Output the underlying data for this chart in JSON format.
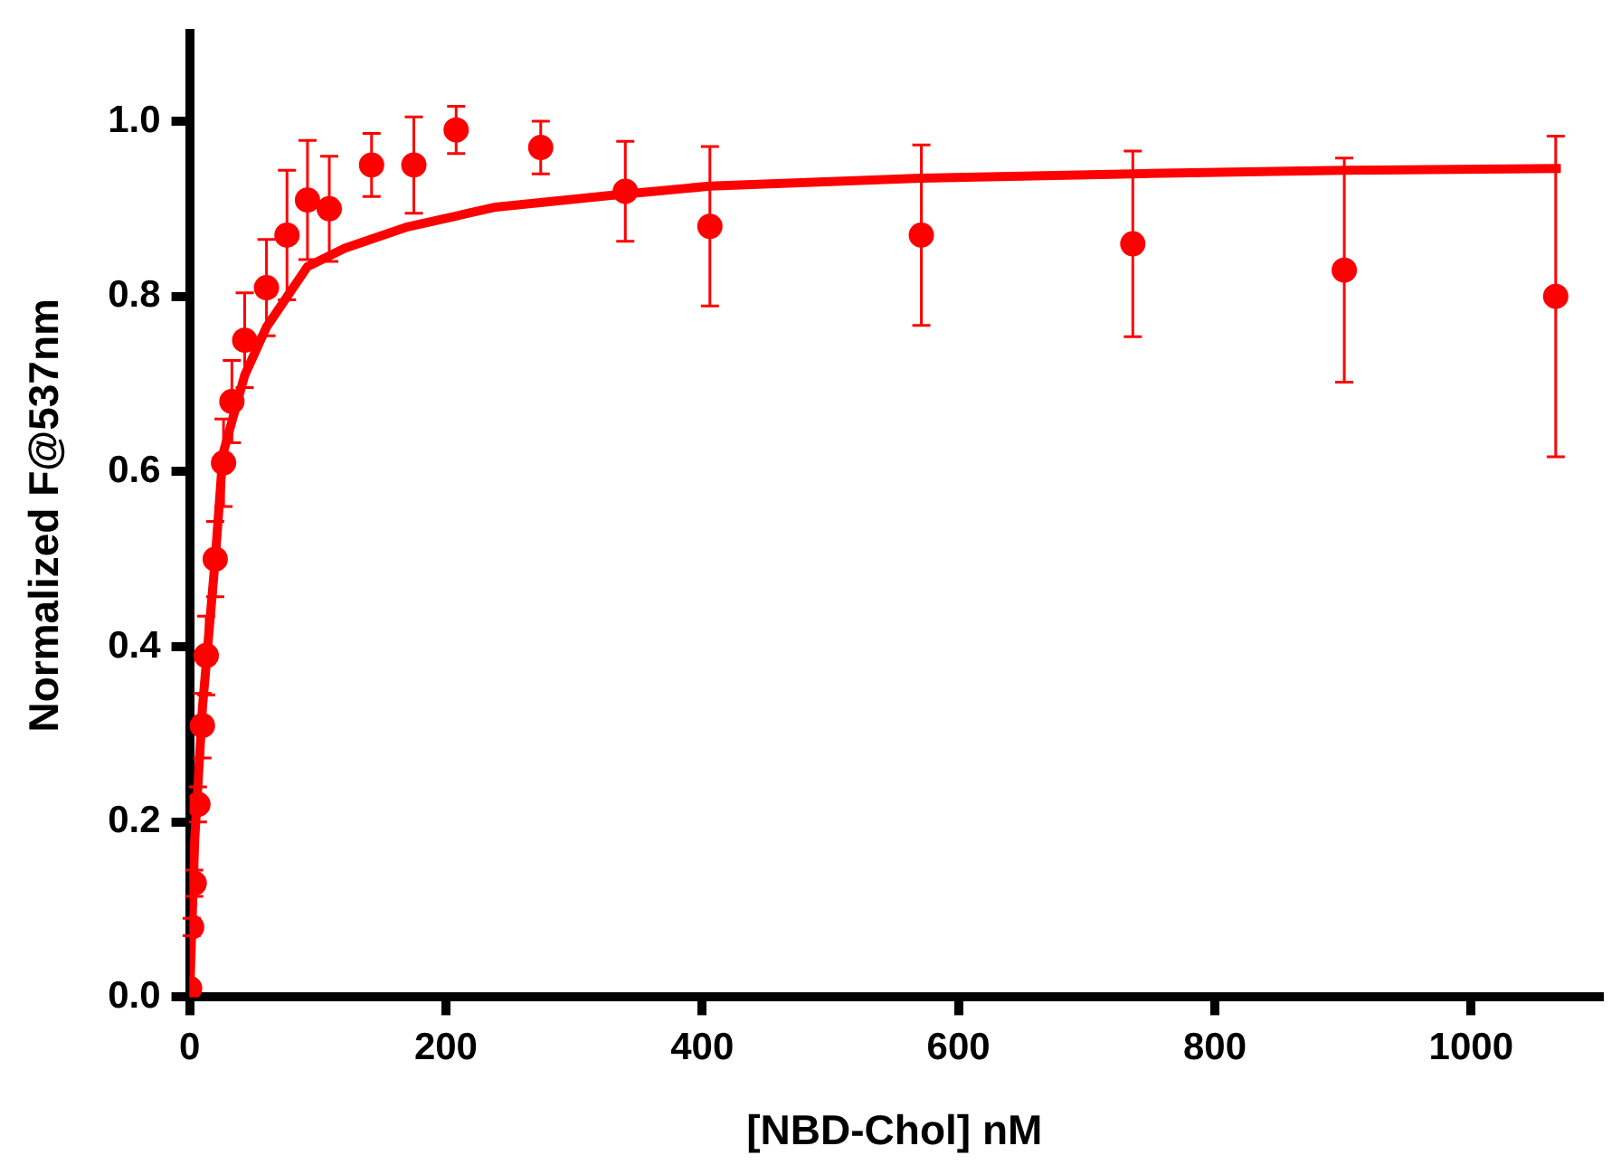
{
  "chart_data": {
    "type": "scatter",
    "xlabel": "[NBD-Chol] nM",
    "ylabel": "Normalized F@537nm",
    "xlim": [
      0,
      1100
    ],
    "xticks": [
      0,
      200,
      400,
      600,
      800,
      1000
    ],
    "ylim": [
      0,
      1.1
    ],
    "yticks": [
      {
        "value": 0,
        "label": "0.0"
      },
      {
        "value": 0.2,
        "label": "0.2"
      },
      {
        "value": 0.4,
        "label": "0.4"
      },
      {
        "value": 0.6,
        "label": "0.6"
      },
      {
        "value": 0.8,
        "label": "0.8"
      },
      {
        "value": 1,
        "label": "1.0"
      }
    ],
    "grid": false,
    "legend": false,
    "marker": "circle",
    "series": [
      {
        "color": "#ff0000",
        "x": [
          0,
          1.6,
          3.6,
          6.5,
          10,
          13,
          20,
          26.5,
          33,
          43,
          60,
          76,
          92,
          109,
          142,
          175,
          208,
          274,
          340,
          406,
          571,
          736,
          901,
          1066
        ],
        "values": [
          0.01,
          0.08,
          0.13,
          0.22,
          0.31,
          0.39,
          0.5,
          0.61,
          0.68,
          0.75,
          0.81,
          0.87,
          0.91,
          0.9,
          0.95,
          0.95,
          0.99,
          0.97,
          0.92,
          0.88,
          0.87,
          0.86,
          0.83,
          0.8
        ],
        "errors": [
          null,
          0.01,
          0.015,
          0.02,
          0.037,
          0.045,
          0.043,
          0.05,
          0.047,
          0.054,
          0.055,
          0.074,
          0.068,
          0.06,
          0.036,
          0.055,
          0.027,
          0.03,
          0.057,
          0.091,
          0.103,
          0.106,
          0.128,
          0.183
        ]
      },
      {
        "type": "line",
        "color": "#ff0000",
        "marker": "none",
        "x": [
          0,
          4,
          10,
          20,
          26,
          43,
          60,
          92,
          121,
          169,
          239,
          327,
          406,
          571,
          736,
          901,
          1070
        ],
        "values": [
          0,
          0.18,
          0.33,
          0.5,
          0.62,
          0.71,
          0.765,
          0.834,
          0.855,
          0.879,
          0.902,
          0.915,
          0.926,
          0.935,
          0.94,
          0.944,
          0.946
        ]
      }
    ]
  }
}
